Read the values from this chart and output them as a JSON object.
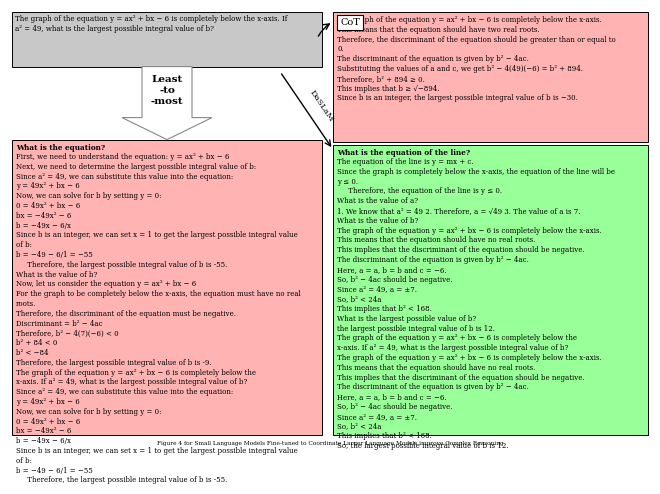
{
  "title_caption": "Figure 4 for Small Language Models Fine-tuned to Coordinate Larger Language Models improve Complex Reasoning",
  "question_text": "The graph of the equation y = ax² + bx − 6 is completely below the x-axis. If\na² = 49, what is the largest possible integral value of b?",
  "cot_label": "CoT",
  "dasslam_label": "DaSLaM",
  "least_to_most_label": "Least\n-to\n-most",
  "top_right_color": "#ffb3b3",
  "bottom_left_color": "#ffb3b3",
  "bottom_right_color": "#99ff99",
  "question_box_color": "#c8c8c8",
  "top_right_text": "The graph of the equation y = ax² + bx − 6 is completely below the x-axis.\nThis means that the equation should have two real roots.\nTherefore, the discriminant of the equation should be greater than or equal to\n0.\nThe discriminant of the equation is given by b² − 4ac.\nSubstituting the values of a and c, we get b² − 4(49)(−6) = b² + 894.\nTherefore, b² + 894 ≥ 0.\nThis implies that b ≥ √−894.\nSince b is an integer, the largest possible integral value of b is −30.",
  "bottom_left_text_header": "What is the equation?",
  "bottom_left_text_body": "First, we need to understand the equation: y = ax² + bx − 6\nNext, we need to determine the largest possible integral value of b:\nSince a² = 49, we can substitute this value into the equation:\ny = 49x² + bx − 6\nNow, we can solve for b by setting y = 0:\n0 = 49x² + bx − 6\nbx = −49x² − 6\nb = −49x − 6/x\nSince b is an integer, we can set x = 1 to get the largest possible integral value\nof b:\nb = −49 − 6/1 = −55\n     Therefore, the largest possible integral value of b is -55.\nWhat is the value of b?\nNow, let us consider the equation y = ax² + bx − 6\nFor the graph to be completely below the x-axis, the equation must have no real\nroots.\nTherefore, the discriminant of the equation must be negative.\nDiscriminant = b² − 4ac\nTherefore, b² − 4(7)(−6) < 0\nb² + 84 < 0\nb² < −84\nTherefore, the largest possible integral value of b is -9.\nThe graph of the equation y = ax² + bx − 6 is completely below the\nx-axis. If a² = 49, what is the largest possible integral value of b?\nSince a² = 49, we can substitute this value into the equation:\ny = 49x² + bx − 6\nNow, we can solve for b by setting y = 0:\n0 = 49x² + bx − 6\nbx = −49x² − 6\nb = −49x − 6/x\nSince b is an integer, we can set x = 1 to get the largest possible integral value\nof b:\nb = −49 − 6/1 = −55\n     Therefore, the largest possible integral value of b is -55.",
  "bottom_left_text_bold_line": "What is the value of b?",
  "bottom_left_bold_line2": "The graph of the equation y = ax² + bx − 6 is completely below the",
  "bottom_left_bold_line3": "x-axis. If a² = 49, what is the largest possible integral value of b?",
  "bottom_right_text_header": "What is the equation of the line?",
  "bottom_right_text_body": "The equation of the line is y = mx + c.\nSince the graph is completely below the x-axis, the equation of the line will be\ny ≤ 0.\n     Therefore, the equation of the line is y ≤ 0.\nWhat is the value of a?\n1. We know that a² = 49 2. Therefore, a = √49 3. The value of a is 7.\nWhat is the value of b?\nThe graph of the equation y = ax² + bx − 6 is completely below the x-axis.\nThis means that the equation should have no real roots.\nThis implies that the discriminant of the equation should be negative.\nThe discriminant of the equation is given by b² − 4ac.\nHere, a = a, b = b and c = −6.\nSo, b² − 4ac should be negative.\nSince a² = 49, a = ±7.\nSo, b² < 24a\nThis implies that b² < 168.\nWhat is the largest possible value of b?\nthe largest possible integral value of b is 12.\nThe graph of the equation y = ax² + bx − 6 is completely below the\nx-axis. If a² = 49, what is the largest possible integral value of b?\nThe graph of the equation y = ax² + bx − 6 is completely below the x-axis.\nThis means that the equation should have no real roots.\nThis implies that the discriminant of the equation should be negative.\nThe discriminant of the equation is given by b² − 4ac.\nHere, a = a, b = b and c = −6.\nSo, b² − 4ac should be negative.\nSince a² = 49, a = ±7.\nSo, b² < 24a\nThis implies that b² < 168.\nSo, the largest possible integral value of b is 12.",
  "bg_color": "#ffffff",
  "arrow_color": "#ffffff",
  "arrow_edge_color": "#888888",
  "text_fontsize": 5.0,
  "header_fontsize": 5.2,
  "caption_fontsize": 4.2
}
